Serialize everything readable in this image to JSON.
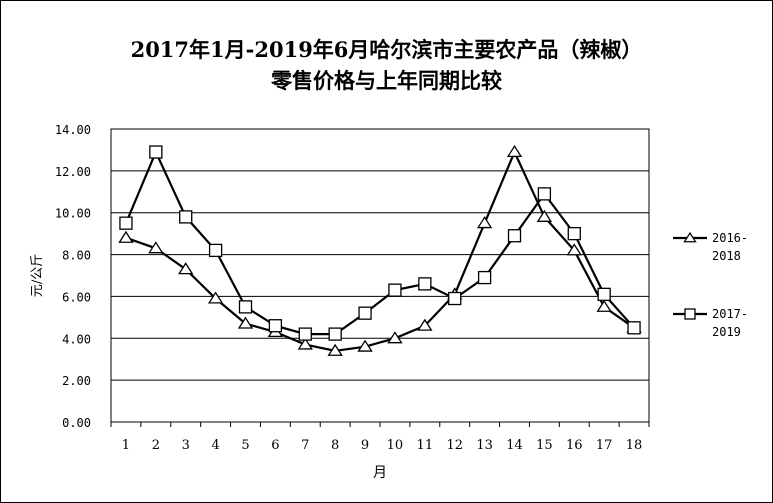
{
  "chart_data": {
    "type": "line",
    "title": [
      "2017年1月-2019年6月哈尔滨市主要农产品（辣椒）",
      "零售价格与上年同期比较"
    ],
    "ylabel": "元/公斤",
    "xlabel": "月",
    "categories": [
      "1",
      "2",
      "3",
      "4",
      "5",
      "6",
      "7",
      "8",
      "9",
      "10",
      "11",
      "12",
      "13",
      "14",
      "15",
      "16",
      "17",
      "18"
    ],
    "ylim": [
      0,
      14
    ],
    "yticks": [
      "0.00",
      "2.00",
      "4.00",
      "6.00",
      "8.00",
      "10.00",
      "12.00",
      "14.00"
    ],
    "grid": true,
    "legend_position": "right",
    "series": [
      {
        "name": [
          "2016-",
          "2018"
        ],
        "marker": "triangle",
        "values": [
          8.8,
          8.3,
          7.3,
          5.9,
          4.7,
          4.3,
          3.7,
          3.4,
          3.6,
          4.0,
          4.6,
          6.1,
          9.5,
          12.9,
          9.8,
          8.2,
          5.5,
          4.5
        ]
      },
      {
        "name": [
          "2017-",
          "2019"
        ],
        "marker": "square",
        "values": [
          9.5,
          12.9,
          9.8,
          8.2,
          5.5,
          4.6,
          4.2,
          4.2,
          5.2,
          6.3,
          6.6,
          5.9,
          6.9,
          8.9,
          10.9,
          9.0,
          6.1,
          4.5
        ]
      }
    ]
  }
}
